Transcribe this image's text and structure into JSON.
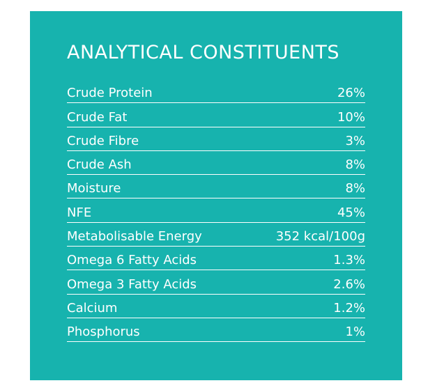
{
  "title": "ANALYTICAL CONSTITUENTS",
  "colors": {
    "panel_background": "#17b3ae",
    "text": "#ffffff",
    "page_background": "#ffffff"
  },
  "rows": [
    {
      "label": "Crude Protein",
      "value": "26%"
    },
    {
      "label": "Crude Fat",
      "value": "10%"
    },
    {
      "label": "Crude Fibre",
      "value": "3%"
    },
    {
      "label": "Crude Ash",
      "value": "8%"
    },
    {
      "label": "Moisture",
      "value": "8%"
    },
    {
      "label": "NFE",
      "value": "45%"
    },
    {
      "label": "Metabolisable Energy",
      "value": "352 kcal/100g"
    },
    {
      "label": "Omega 6 Fatty Acids",
      "value": "1.3%"
    },
    {
      "label": "Omega 3 Fatty Acids",
      "value": "2.6%"
    },
    {
      "label": "Calcium",
      "value": "1.2%"
    },
    {
      "label": "Phosphorus",
      "value": "1%"
    }
  ]
}
